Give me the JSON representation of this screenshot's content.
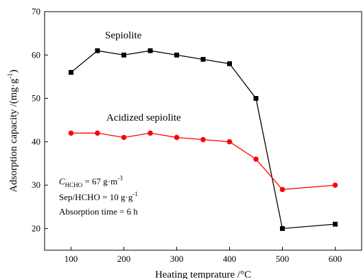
{
  "chart_data": {
    "type": "line",
    "x": [
      100,
      150,
      200,
      250,
      300,
      350,
      400,
      450,
      500,
      600
    ],
    "series": [
      {
        "name": "Sepiolite",
        "values": [
          56,
          61,
          60,
          61,
          60,
          59,
          58,
          50,
          20,
          21
        ],
        "color": "#000000",
        "marker": "square"
      },
      {
        "name": "Acidized sepiolite",
        "values": [
          42,
          42,
          41,
          42,
          41,
          40.5,
          40,
          36,
          29,
          30
        ],
        "color": "#ff0000",
        "marker": "circle"
      }
    ],
    "xlabel": "Heating temprature /°C",
    "ylabel": "Adsorption capacity /(mg·g",
    "ylabel_sup": "-1",
    "ylabel_end": ")",
    "xlim": [
      50,
      650
    ],
    "ylim": [
      15,
      70
    ],
    "xticks": [
      100,
      200,
      300,
      400,
      500,
      600
    ],
    "yticks": [
      20,
      30,
      40,
      50,
      60,
      70
    ],
    "grid": false,
    "annotations": {
      "conc_symbol": "C",
      "conc_sub": "HCHO",
      "conc_value": " = 67 g·m",
      "conc_sup": "-3",
      "ratio_text": "Sep/HCHO = 10 g·g",
      "ratio_sup": "-1",
      "time_text": "Absorption time = 6 h"
    }
  }
}
